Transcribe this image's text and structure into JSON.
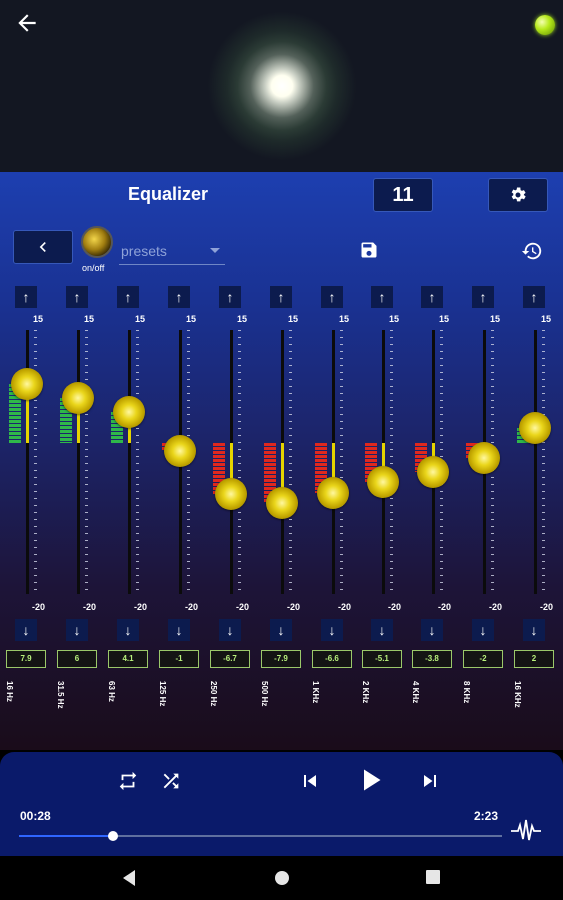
{
  "header": {
    "back_icon": "back-arrow-icon",
    "status_led_color": "#a6e21b"
  },
  "toolbar": {
    "title": "Equalizer",
    "count": "11",
    "settings_icon": "gear-icon"
  },
  "controls": {
    "onoff_label": "on/off",
    "presets_label": "presets",
    "save_icon": "save-icon",
    "history_icon": "history-icon"
  },
  "scale": {
    "max": "15",
    "min": "-20"
  },
  "bands": [
    {
      "freq": "16 Hz",
      "value": "7.9"
    },
    {
      "freq": "31.5 Hz",
      "value": "6"
    },
    {
      "freq": "63 Hz",
      "value": "4.1"
    },
    {
      "freq": "125 Hz",
      "value": "-1"
    },
    {
      "freq": "250 Hz",
      "value": "-6.7"
    },
    {
      "freq": "500 Hz",
      "value": "-7.9"
    },
    {
      "freq": "1 KHz",
      "value": "-6.6"
    },
    {
      "freq": "2 KHz",
      "value": "-5.1"
    },
    {
      "freq": "4 KHz",
      "value": "-3.8"
    },
    {
      "freq": "8 KHz",
      "value": "-2"
    },
    {
      "freq": "16 KHz",
      "value": "2"
    }
  ],
  "player": {
    "elapsed": "00:28",
    "duration": "2:23",
    "progress": 0.195
  }
}
